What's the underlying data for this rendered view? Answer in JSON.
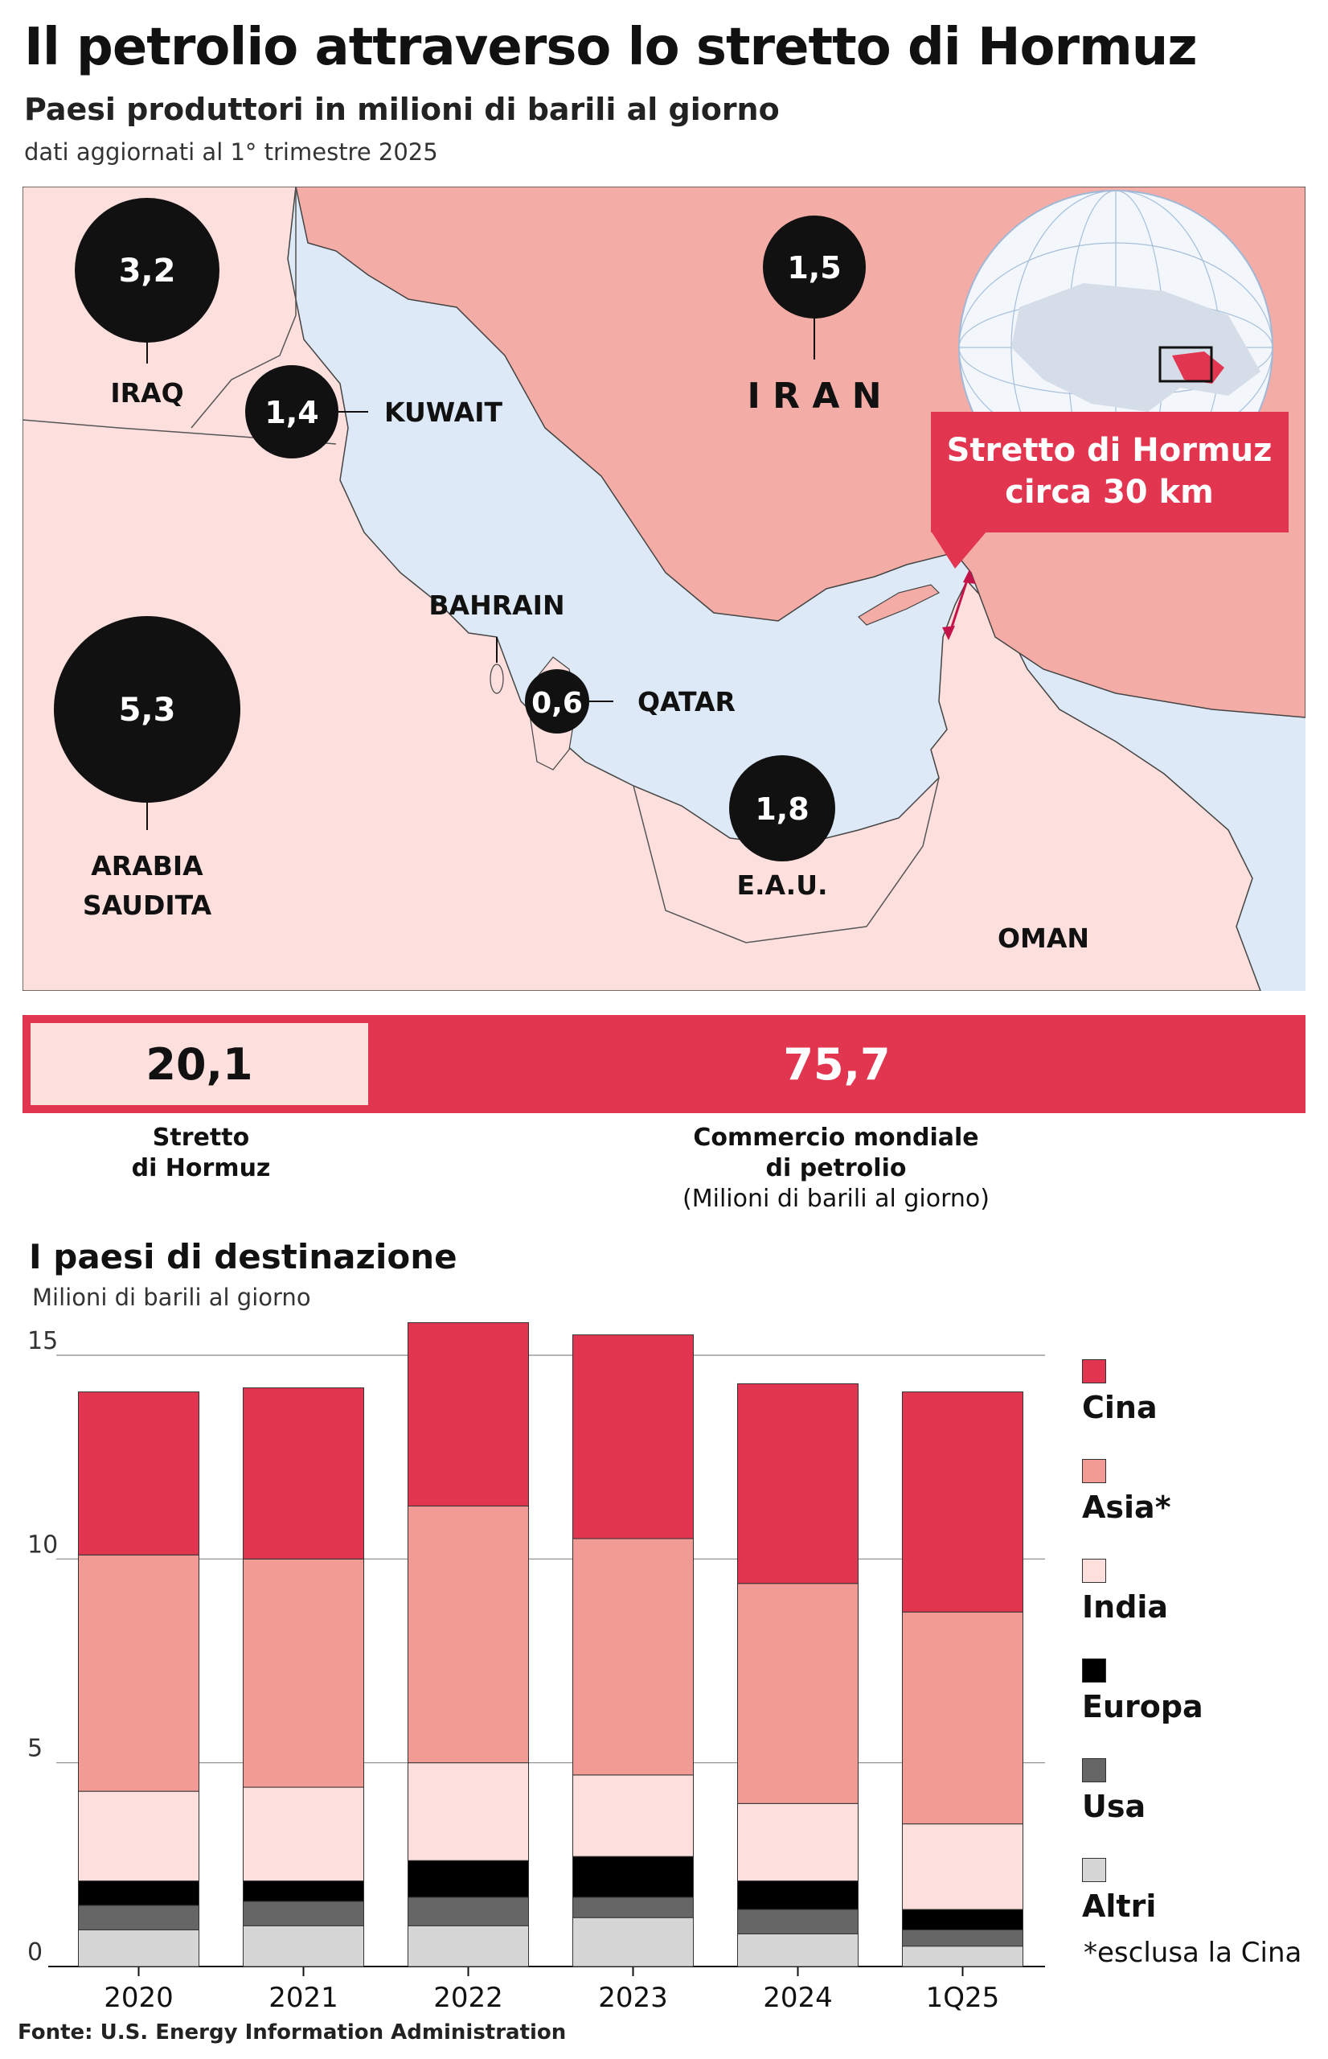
{
  "header": {
    "title": "Il petrolio attraverso lo stretto di Hormuz",
    "subtitle": "Paesi produttori in milioni di barili al giorno",
    "note": "dati aggiornati al 1° trimestre 2025"
  },
  "map": {
    "producers": [
      {
        "country": "IRAQ",
        "value": "3,2"
      },
      {
        "country": "KUWAIT",
        "value": "1,4"
      },
      {
        "country": "IRAN",
        "value": "1,5"
      },
      {
        "country": "BAHRAIN",
        "value": ""
      },
      {
        "country": "QATAR",
        "value": "0,6"
      },
      {
        "country": "ARABIA SAUDITA",
        "value": "5,3"
      },
      {
        "country": "E.A.U.",
        "value": "1,8"
      }
    ],
    "labels": {
      "iraq": "IRAQ",
      "kuwait": "KUWAIT",
      "iran": "I R A N",
      "bahrain": "BAHRAIN",
      "qatar": "QATAR",
      "saudi_line1": "ARABIA",
      "saudi_line2": "SAUDITA",
      "uae": "E.A.U.",
      "oman": "OMAN"
    },
    "callout_line1": "Stretto di Hormuz",
    "callout_line2": "circa 30 km",
    "colors": {
      "sea": "#dde9f6",
      "land": "#fde0dd",
      "iran": "#f4aca7",
      "bubble": "#111111",
      "accent": "#e2354f"
    }
  },
  "summary": {
    "hormuz_value": "20,1",
    "world_value": "75,7",
    "hormuz_label_1": "Stretto",
    "hormuz_label_2": "di Hormuz",
    "world_label_1": "Commercio mondiale",
    "world_label_2": "di petrolio",
    "world_label_3": "(Milioni di barili al giorno)"
  },
  "destinations": {
    "title": "I paesi di destinazione",
    "unit": "Milioni di barili al giorno",
    "legend_note": "*esclusa la Cina"
  },
  "source": "Fonte: U.S. Energy Information Administration",
  "chart_data": {
    "type": "bar",
    "stacked": true,
    "title": "I paesi di destinazione",
    "ylabel": "Milioni di barili al giorno",
    "categories": [
      "2020",
      "2021",
      "2022",
      "2023",
      "2024",
      "1Q25"
    ],
    "ylim": [
      0,
      15
    ],
    "yticks": [
      0,
      5,
      10,
      15
    ],
    "grid": true,
    "legend_position": "right",
    "series": [
      {
        "name": "Altri",
        "color": "#d6d6d6",
        "values": [
          0.9,
          1.0,
          1.0,
          1.2,
          0.8,
          0.5
        ]
      },
      {
        "name": "Usa",
        "color": "#666666",
        "values": [
          0.6,
          0.6,
          0.7,
          0.5,
          0.6,
          0.4
        ]
      },
      {
        "name": "Europa",
        "color": "#000000",
        "values": [
          0.6,
          0.5,
          0.9,
          1.0,
          0.7,
          0.5
        ]
      },
      {
        "name": "India",
        "color": "#fde0dd",
        "values": [
          2.2,
          2.3,
          2.4,
          2.0,
          1.9,
          2.1
        ]
      },
      {
        "name": "Asia*",
        "color": "#f29b94",
        "values": [
          5.8,
          5.6,
          6.3,
          5.8,
          5.4,
          5.2
        ]
      },
      {
        "name": "Cina",
        "color": "#e2354f",
        "values": [
          4.0,
          4.2,
          4.5,
          5.0,
          4.9,
          5.4
        ]
      }
    ]
  }
}
